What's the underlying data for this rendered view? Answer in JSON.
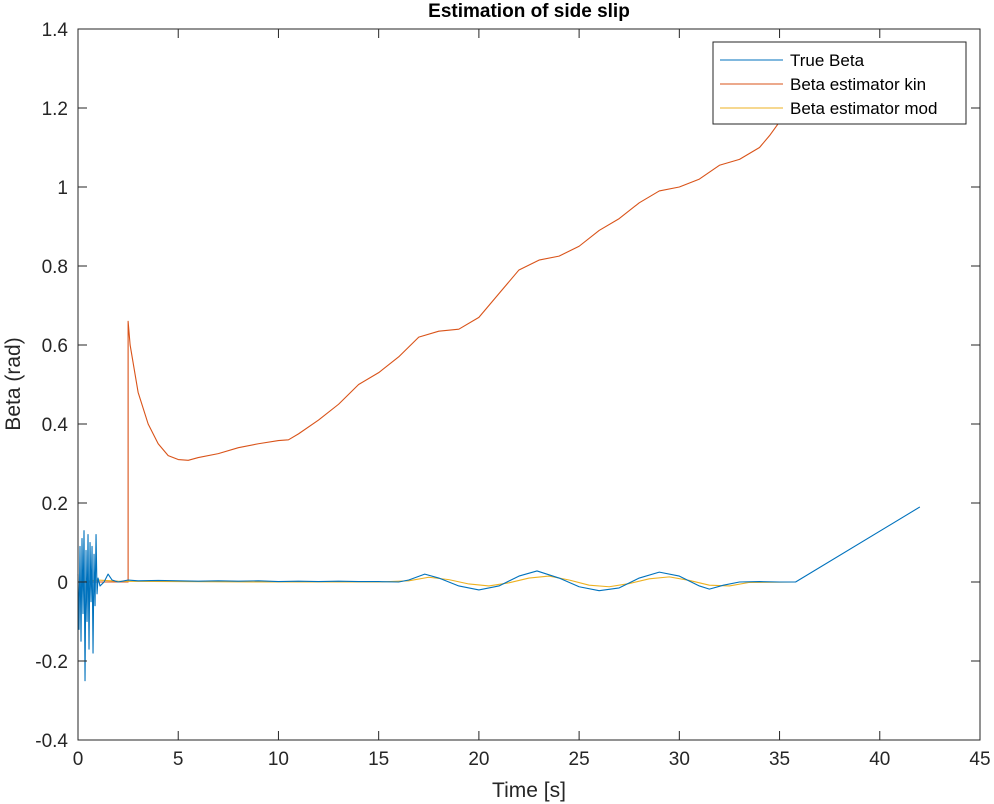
{
  "chart_data": {
    "type": "line",
    "title": "Estimation of side slip",
    "xlabel": "Time [s]",
    "ylabel": "Beta (rad)",
    "xlim": [
      0,
      45
    ],
    "ylim": [
      -0.4,
      1.4
    ],
    "xticks": [
      0,
      5,
      10,
      15,
      20,
      25,
      30,
      35,
      40,
      45
    ],
    "yticks": [
      -0.4,
      -0.2,
      0,
      0.2,
      0.4,
      0.6,
      0.8,
      1,
      1.2,
      1.4
    ],
    "xtick_labels": [
      "0",
      "5",
      "10",
      "15",
      "20",
      "25",
      "30",
      "35",
      "40",
      "45"
    ],
    "ytick_labels": [
      "-0.4",
      "-0.2",
      "0",
      "0.2",
      "0.4",
      "0.6",
      "0.8",
      "1",
      "1.2",
      "1.4"
    ],
    "grid": false,
    "legend_position": "top-right",
    "series": [
      {
        "name": "True Beta",
        "color": "#0072BD",
        "x": [
          0,
          0.05,
          0.1,
          0.15,
          0.2,
          0.25,
          0.3,
          0.35,
          0.4,
          0.45,
          0.5,
          0.55,
          0.6,
          0.65,
          0.7,
          0.75,
          0.8,
          0.85,
          0.9,
          0.95,
          1.0,
          1.1,
          1.3,
          1.5,
          1.7,
          2.0,
          2.5,
          3.0,
          4.0,
          5.0,
          6.0,
          7.0,
          8.0,
          9.0,
          10.0,
          11.0,
          12.0,
          13.0,
          14.0,
          15.0,
          16.0,
          16.5,
          17.3,
          18.0,
          19.0,
          20.0,
          21.0,
          22.0,
          22.9,
          24.0,
          25.0,
          26.0,
          27.0,
          28.0,
          29.0,
          30.0,
          31.0,
          31.5,
          32.2,
          33.0,
          34.0,
          35.0,
          35.8,
          42.0
        ],
        "y": [
          0.02,
          -0.12,
          0.09,
          -0.15,
          0.11,
          -0.08,
          0.13,
          -0.25,
          0.08,
          -0.1,
          0.12,
          -0.17,
          0.1,
          -0.05,
          0.09,
          -0.18,
          0.07,
          -0.06,
          0.12,
          -0.03,
          0.01,
          -0.01,
          0.0,
          0.02,
          0.005,
          0.0,
          0.005,
          0.003,
          0.004,
          0.003,
          0.002,
          0.003,
          0.002,
          0.003,
          0.001,
          0.002,
          0.001,
          0.002,
          0.001,
          0.001,
          0.0,
          0.005,
          0.02,
          0.01,
          -0.01,
          -0.02,
          -0.01,
          0.015,
          0.028,
          0.01,
          -0.012,
          -0.022,
          -0.015,
          0.01,
          0.025,
          0.015,
          -0.01,
          -0.018,
          -0.008,
          0.0,
          0.001,
          0.0,
          0.0,
          0.19
        ]
      },
      {
        "name": "Beta estimator kin",
        "color": "#D95319",
        "x": [
          0,
          2.5,
          2.5,
          2.6,
          3.0,
          3.5,
          4.0,
          4.5,
          5.0,
          5.5,
          6.0,
          7.0,
          8.0,
          9.0,
          10.0,
          10.5,
          11.0,
          12.0,
          13.0,
          14.0,
          15.0,
          16.0,
          17.0,
          18.0,
          19.0,
          20.0,
          21.0,
          22.0,
          23.0,
          24.0,
          25.0,
          26.0,
          27.0,
          28.0,
          29.0,
          30.0,
          31.0,
          32.0,
          33.0,
          34.0,
          34.5,
          35.0,
          35.5,
          36.0
        ],
        "y": [
          0.0,
          0.0,
          0.66,
          0.6,
          0.48,
          0.4,
          0.35,
          0.32,
          0.31,
          0.308,
          0.315,
          0.325,
          0.34,
          0.35,
          0.358,
          0.36,
          0.375,
          0.41,
          0.45,
          0.5,
          0.53,
          0.57,
          0.62,
          0.635,
          0.64,
          0.67,
          0.73,
          0.79,
          0.815,
          0.825,
          0.85,
          0.89,
          0.92,
          0.96,
          0.99,
          1.0,
          1.02,
          1.055,
          1.07,
          1.1,
          1.13,
          1.165,
          1.2,
          1.22
        ]
      },
      {
        "name": "Beta estimator mod",
        "color": "#EDB120",
        "x": [
          0,
          1.0,
          2.0,
          5.0,
          10.0,
          15.0,
          16.5,
          17.5,
          18.5,
          19.5,
          20.5,
          21.5,
          22.5,
          23.5,
          24.5,
          25.5,
          26.5,
          27.5,
          28.5,
          29.5,
          30.5,
          31.5,
          32.5,
          33.5,
          35.8
        ],
        "y": [
          0.0,
          0.005,
          0.002,
          0.001,
          0.0,
          0.0,
          0.003,
          0.012,
          0.006,
          -0.005,
          -0.01,
          -0.002,
          0.01,
          0.015,
          0.005,
          -0.008,
          -0.012,
          -0.004,
          0.008,
          0.013,
          0.004,
          -0.008,
          -0.01,
          -0.001,
          0.0
        ]
      }
    ]
  }
}
